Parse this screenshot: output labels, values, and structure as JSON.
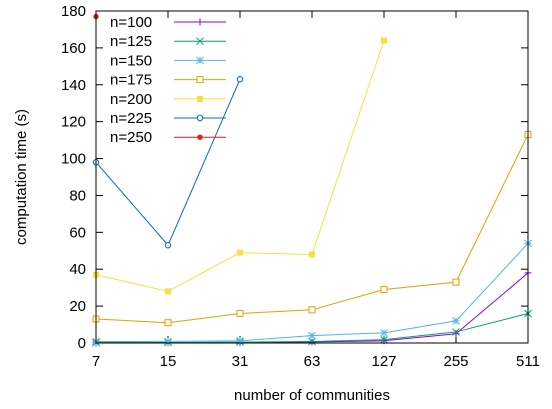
{
  "chart_data": {
    "type": "line",
    "xlabel": "number of communities",
    "ylabel": "computation time (s)",
    "categories": [
      "7",
      "15",
      "31",
      "63",
      "127",
      "255",
      "511"
    ],
    "ylim": [
      0,
      180
    ],
    "yticks": [
      "0",
      "20",
      "40",
      "60",
      "80",
      "100",
      "120",
      "140",
      "160",
      "180"
    ],
    "grid": false,
    "legend_position": "top-left",
    "series": [
      {
        "name": "n=100",
        "color": "#9400d3",
        "marker": "plus",
        "values": [
          0.1,
          0.2,
          0.3,
          0.6,
          1.2,
          5,
          38
        ]
      },
      {
        "name": "n=125",
        "color": "#009e73",
        "marker": "cross",
        "values": [
          0.2,
          0.3,
          0.5,
          0.8,
          1.8,
          6,
          16
        ]
      },
      {
        "name": "n=150",
        "color": "#56b4e9",
        "marker": "star",
        "values": [
          0.8,
          0.9,
          1.2,
          4,
          5.5,
          12,
          54
        ]
      },
      {
        "name": "n=175",
        "color": "#e69f00",
        "marker": "open-square",
        "values": [
          13,
          11,
          16,
          18,
          29,
          33,
          113
        ]
      },
      {
        "name": "n=200",
        "color": "#f0e442",
        "marker": "filled-square",
        "values": [
          37,
          28,
          49,
          48,
          164,
          null,
          null
        ]
      },
      {
        "name": "n=225",
        "color": "#0072b2",
        "marker": "open-circle",
        "values": [
          98,
          53,
          143,
          null,
          null,
          null,
          null
        ]
      },
      {
        "name": "n=250",
        "color": "#e51e10",
        "marker": "filled-circle",
        "values": [
          177,
          null,
          null,
          null,
          null,
          null,
          null
        ]
      }
    ]
  }
}
